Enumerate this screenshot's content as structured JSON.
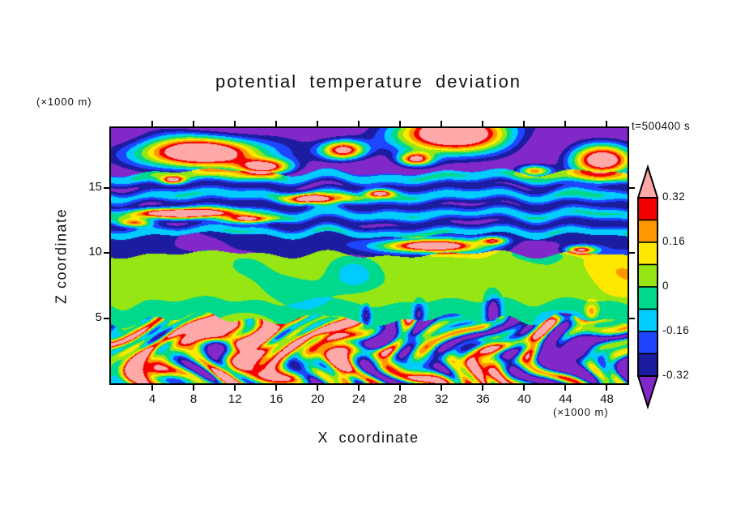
{
  "chart_data": {
    "type": "heatmap",
    "title": "potential temperature deviation",
    "xlabel": "X coordinate",
    "ylabel": "Z coordinate",
    "x_unit_label": "(×1000 m)",
    "z_unit_label": "(×1000 m)",
    "time_label": "t=500400 s",
    "x_range": [
      0,
      50
    ],
    "z_range": [
      0,
      19.6
    ],
    "x_ticks": [
      4,
      8,
      12,
      16,
      20,
      24,
      28,
      32,
      36,
      40,
      44,
      48
    ],
    "z_ticks": [
      5,
      10,
      15
    ],
    "grid": false,
    "legend": "colorbar-right",
    "colorbar": {
      "position": "right",
      "labels": [
        "0.32",
        "0.16",
        "0",
        "-0.16",
        "-0.32"
      ],
      "levels": [
        -0.32,
        -0.24,
        -0.16,
        -0.08,
        0,
        0.08,
        0.16,
        0.24,
        0.32
      ],
      "colors": {
        "above": "#ffa8a8",
        "below": "#8228c8",
        "bins_low_to_high": [
          "#1c1ca0",
          "#1e46ff",
          "#00ccff",
          "#00d98c",
          "#96e614",
          "#ffe800",
          "#ff9800",
          "#f40000"
        ]
      }
    },
    "field_model": {
      "description": "stylized filled-contour field of potential temperature deviation: turbulent convective boundary layer below z=5 km, positive (green) layer 6-10 km, negative (navy) band 10-11 km, alternating cyan/blue/navy wave bands 11-16 km, strongly negative (purple) region above 16 km with strong-positive (pink) cloud anomalies",
      "layers": [
        {
          "zmax": 4.9,
          "base": 0.02,
          "amp": 0.62,
          "kind": "turbulent"
        },
        {
          "zmax": 6.3,
          "base": -0.04,
          "amp": 0.03,
          "kind": "smooth"
        },
        {
          "zmax": 9.9,
          "base": 0.045,
          "amp": 0.04,
          "kind": "smooth"
        },
        {
          "zmax": 11.35,
          "base": -0.29,
          "amp": 0.05,
          "kind": "smooth"
        },
        {
          "zmax": 16.2,
          "base": -0.2,
          "amp": 0.05,
          "kind": "striped",
          "stripe_amp": 0.105,
          "stripe_freq": 4.4,
          "stripe_phase": 11.55
        },
        {
          "zmax": 19.6,
          "base": -0.46,
          "amp": 0.08,
          "kind": "smooth"
        }
      ],
      "blobs": [
        {
          "x": 9,
          "z": 17.7,
          "rx": 6.5,
          "rz": 1.25,
          "a": 1.05
        },
        {
          "x": 15,
          "z": 16.6,
          "rx": 2.6,
          "rz": 0.6,
          "a": 0.75
        },
        {
          "x": 22.5,
          "z": 17.9,
          "rx": 2.2,
          "rz": 0.75,
          "a": 0.85
        },
        {
          "x": 33,
          "z": 19.2,
          "rx": 6.0,
          "rz": 1.6,
          "a": 1.05
        },
        {
          "x": 29.5,
          "z": 17.2,
          "rx": 1.6,
          "rz": 0.5,
          "a": 0.7
        },
        {
          "x": 47.5,
          "z": 17.1,
          "rx": 3.2,
          "rz": 1.25,
          "a": 0.95
        },
        {
          "x": 41,
          "z": 16.3,
          "rx": 1.6,
          "rz": 0.45,
          "a": 0.65
        },
        {
          "x": 6,
          "z": 15.6,
          "rx": 1.1,
          "rz": 0.3,
          "a": 0.55
        },
        {
          "x": 20,
          "z": 14.15,
          "rx": 2.8,
          "rz": 0.4,
          "a": 0.75
        },
        {
          "x": 26,
          "z": 14.6,
          "rx": 1.3,
          "rz": 0.3,
          "a": 0.6
        },
        {
          "x": 7,
          "z": 13.05,
          "rx": 4.5,
          "rz": 0.38,
          "a": 0.8
        },
        {
          "x": 13.5,
          "z": 12.6,
          "rx": 2.4,
          "rz": 0.3,
          "a": 0.6
        },
        {
          "x": 2.5,
          "z": 12.3,
          "rx": 1.5,
          "rz": 0.3,
          "a": 0.5
        },
        {
          "x": 31,
          "z": 10.55,
          "rx": 4.6,
          "rz": 0.5,
          "a": 0.85
        },
        {
          "x": 37,
          "z": 10.95,
          "rx": 1.3,
          "rz": 0.3,
          "a": 0.55
        },
        {
          "x": 45.5,
          "z": 10.25,
          "rx": 1.4,
          "rz": 0.3,
          "a": 0.65
        },
        {
          "x": 41.5,
          "z": 10.2,
          "rx": 3.0,
          "rz": 0.7,
          "a": -0.12
        },
        {
          "x": 8,
          "z": 10.6,
          "rx": 2.5,
          "rz": 0.6,
          "a": -0.08
        },
        {
          "x": 50.5,
          "z": 8.2,
          "rx": 4.5,
          "rz": 2.0,
          "a": 0.1
        },
        {
          "x": 23.5,
          "z": 8.4,
          "rx": 2.3,
          "rz": 1.4,
          "a": -0.16
        },
        {
          "x": 17,
          "z": 7.4,
          "rx": 6.0,
          "rz": 1.8,
          "a": -0.06
        },
        {
          "x": 33,
          "z": 7.2,
          "rx": 4.0,
          "rz": 1.6,
          "a": -0.05
        },
        {
          "x": 37,
          "z": 5.4,
          "rx": 0.7,
          "rz": 1.2,
          "a": -0.45
        },
        {
          "x": 24.7,
          "z": 5.2,
          "rx": 0.5,
          "rz": 0.8,
          "a": -0.3
        },
        {
          "x": 29.8,
          "z": 5.3,
          "rx": 0.5,
          "rz": 0.8,
          "a": -0.28
        },
        {
          "x": 46.5,
          "z": 5.5,
          "rx": 0.6,
          "rz": 0.6,
          "a": 0.25
        },
        {
          "x": 13,
          "z": 2.8,
          "rx": 2.6,
          "rz": 1.7,
          "a": 0.5
        },
        {
          "x": 4,
          "z": 1.6,
          "rx": 2.4,
          "rz": 1.3,
          "a": 0.45
        },
        {
          "x": 21.5,
          "z": 3.8,
          "rx": 1.7,
          "rz": 1.0,
          "a": 0.4
        },
        {
          "x": 36.8,
          "z": 1.6,
          "rx": 1.3,
          "rz": 1.5,
          "a": 0.55
        },
        {
          "x": 44.5,
          "z": 3.2,
          "rx": 3.2,
          "rz": 1.8,
          "a": -0.35
        },
        {
          "x": 28,
          "z": 2.2,
          "rx": 2.2,
          "rz": 1.6,
          "a": -0.3
        },
        {
          "x": 48.5,
          "z": 1.2,
          "rx": 2.0,
          "rz": 1.0,
          "a": -0.2
        }
      ]
    }
  }
}
